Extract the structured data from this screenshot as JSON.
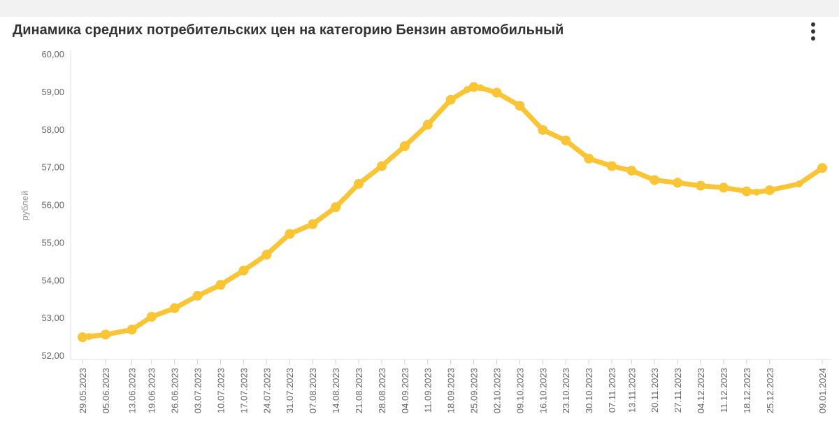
{
  "chart_data": {
    "type": "line",
    "title": "Динамика средних потребительских цен на категорию Бензин автомобильный",
    "ylabel": "рублей",
    "xlabel": "",
    "ylim": [
      52,
      60
    ],
    "y_ticks": [
      "52,00",
      "53,00",
      "54,00",
      "55,00",
      "56,00",
      "57,00",
      "58,00",
      "59,00",
      "60,00"
    ],
    "grid": false,
    "legend": "none",
    "line_color": "#f9c534",
    "categories": [
      "29.05.2023",
      "05.06.2023",
      "13.06.2023",
      "19.06.2023",
      "26.06.2023",
      "03.07.2023",
      "10.07.2023",
      "17.07.2023",
      "24.07.2023",
      "31.07.2023",
      "07.08.2023",
      "14.08.2023",
      "21.08.2023",
      "28.08.2023",
      "04.09.2023",
      "11.09.2023",
      "18.09.2023",
      "25.09.2023",
      "02.10.2023",
      "09.10.2023",
      "16.10.2023",
      "23.10.2023",
      "30.10.2023",
      "07.11.2023",
      "13.11.2023",
      "20.11.2023",
      "27.11.2023",
      "04.12.2023",
      "11.12.2023",
      "18.12.2023",
      "25.12.2023",
      "09.01.2024"
    ],
    "x": [
      0,
      7,
      15,
      21,
      28,
      35,
      42,
      49,
      56,
      63,
      70,
      77,
      84,
      91,
      98,
      105,
      112,
      119,
      126,
      133,
      140,
      147,
      154,
      161,
      167,
      174,
      181,
      188,
      195,
      202,
      209,
      225
    ],
    "values": [
      52.48,
      52.55,
      52.68,
      53.02,
      53.25,
      53.58,
      53.87,
      54.25,
      54.67,
      55.22,
      55.48,
      55.93,
      56.55,
      57.02,
      57.55,
      58.12,
      58.78,
      59.12,
      58.97,
      58.62,
      57.98,
      57.7,
      57.22,
      57.02,
      56.9,
      56.65,
      56.58,
      56.5,
      56.45,
      56.35,
      56.38,
      56.97
    ],
    "extra_points": [
      {
        "x": 2,
        "y": 52.5
      },
      {
        "x": 117,
        "y": 59.05
      },
      {
        "x": 121,
        "y": 59.1
      },
      {
        "x": 205,
        "y": 56.33
      },
      {
        "x": 218,
        "y": 56.55
      }
    ]
  }
}
